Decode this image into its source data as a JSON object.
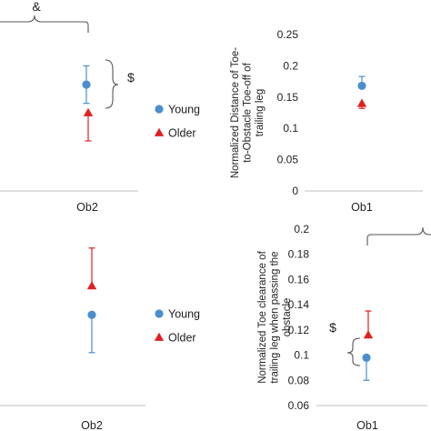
{
  "colors": {
    "young": "#4a8fcd",
    "older": "#e02020",
    "axis": "#bfbfbf",
    "bracket": "#555555"
  },
  "legend": {
    "young": "Young",
    "older": "Older"
  },
  "chart_data": [
    {
      "id": "top-left",
      "type": "scatter",
      "categories": [
        "Ob2"
      ],
      "series": [
        {
          "name": "Young",
          "values": [
            0.17
          ],
          "err_low": [
            0.03
          ],
          "err_high": [
            0.03
          ]
        },
        {
          "name": "Older",
          "values": [
            0.125
          ],
          "err_low": [
            0.045
          ],
          "err_high": [
            0.0
          ]
        }
      ],
      "ylim": [
        0,
        0.25
      ],
      "annotations": [
        "$",
        "&"
      ]
    },
    {
      "id": "top-right",
      "type": "scatter",
      "categories": [
        "Ob1"
      ],
      "series": [
        {
          "name": "Young",
          "values": [
            0.168
          ],
          "err_low": [
            0.0
          ],
          "err_high": [
            0.015
          ]
        },
        {
          "name": "Older",
          "values": [
            0.14
          ],
          "err_low": [
            0.008
          ],
          "err_high": [
            0.0
          ]
        }
      ],
      "yticks": [
        "0",
        "0.05",
        "0.1",
        "0.15",
        "0.2",
        "0.25"
      ],
      "ylim": [
        0,
        0.25
      ],
      "ylabel": "Normalized Distance of Toe-to-Obstacle Toe-off of trailing leg"
    },
    {
      "id": "bottom-left",
      "type": "scatter",
      "categories": [
        "Ob2"
      ],
      "series": [
        {
          "name": "Young",
          "values": [
            0.132
          ],
          "err_low": [
            0.03
          ],
          "err_high": [
            0.0
          ]
        },
        {
          "name": "Older",
          "values": [
            0.155
          ],
          "err_low": [
            0.0
          ],
          "err_high": [
            0.03
          ]
        }
      ],
      "ylim": [
        0.06,
        0.2
      ]
    },
    {
      "id": "bottom-right",
      "type": "scatter",
      "categories": [
        "Ob1"
      ],
      "series": [
        {
          "name": "Young",
          "values": [
            0.098
          ],
          "err_low": [
            0.018
          ],
          "err_high": [
            0.0
          ]
        },
        {
          "name": "Older",
          "values": [
            0.116
          ],
          "err_low": [
            0.0
          ],
          "err_high": [
            0.019
          ]
        }
      ],
      "yticks": [
        "0.06",
        "0.08",
        "0.1",
        "0.12",
        "0.14",
        "0.16",
        "0.18",
        "0.2"
      ],
      "ylim": [
        0.06,
        0.2
      ],
      "ylabel": "Normalized Toe clearance of trailing leg when passing the obstacle",
      "annotations": [
        "$"
      ]
    }
  ]
}
